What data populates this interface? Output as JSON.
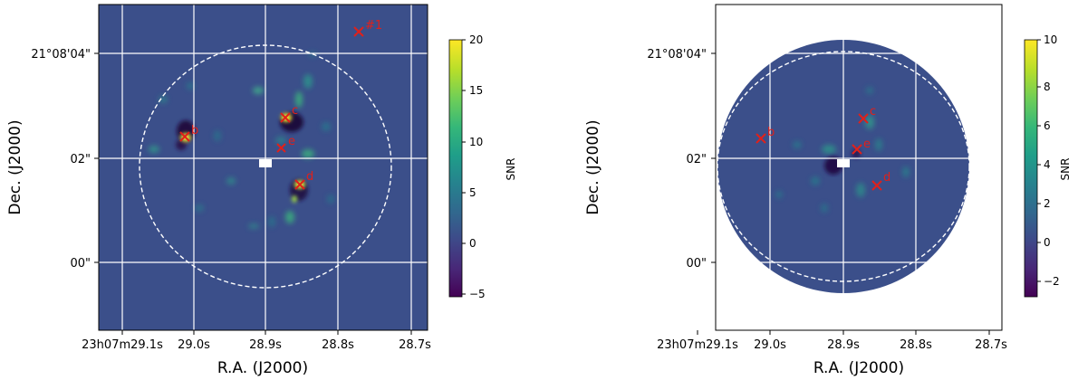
{
  "colors": {
    "background": "#3b4f8a",
    "grid": "#ffffff",
    "marker": "#e0201a",
    "ring": "#ffffff",
    "cmap": [
      "#440154",
      "#482878",
      "#3e4989",
      "#31688e",
      "#26828e",
      "#1f9e89",
      "#35b779",
      "#6ece58",
      "#b5de2b",
      "#fde725"
    ]
  },
  "panels": [
    {
      "id": "left",
      "ylabel": "Dec. (J2000)",
      "xlabel": "R.A. (J2000)",
      "dec_ticks": [
        "21°08'04\"",
        "02\"",
        "00\""
      ],
      "ra_ticks": [
        "23h07m29.1s",
        "29.0s",
        "28.9s",
        "28.8s",
        "28.7s"
      ],
      "colorbar_label": "SNR",
      "colorbar_ticks": [
        "20",
        "15",
        "10",
        "5",
        "0",
        "−5"
      ],
      "markers": [
        {
          "label": "b",
          "name": "source-b"
        },
        {
          "label": "c",
          "name": "source-c"
        },
        {
          "label": "e",
          "name": "source-e"
        },
        {
          "label": "d",
          "name": "source-d"
        },
        {
          "label": "#1",
          "name": "source-1"
        }
      ]
    },
    {
      "id": "right",
      "ylabel": "Dec. (J2000)",
      "xlabel": "R.A. (J2000)",
      "dec_ticks": [
        "21°08'04\"",
        "02\"",
        "00\""
      ],
      "ra_ticks": [
        "23h07m29.1s",
        "29.0s",
        "28.9s",
        "28.8s",
        "28.7s"
      ],
      "colorbar_label": "SNR",
      "colorbar_ticks": [
        "10",
        "8",
        "6",
        "4",
        "2",
        "0",
        "−2"
      ],
      "markers": [
        {
          "label": "b",
          "name": "source-b"
        },
        {
          "label": "c",
          "name": "source-c"
        },
        {
          "label": "e",
          "name": "source-e"
        },
        {
          "label": "d",
          "name": "source-d"
        }
      ]
    }
  ]
}
